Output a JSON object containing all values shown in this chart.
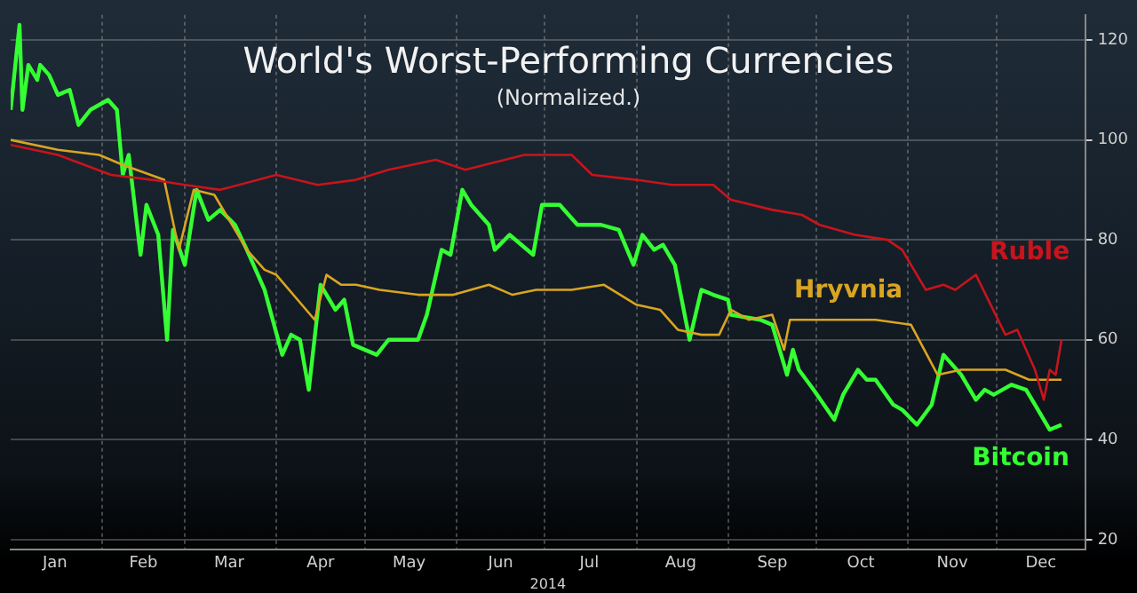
{
  "chart_data": {
    "type": "line",
    "title": "World's Worst-Performing Currencies",
    "subtitle": "(Normalized.)",
    "xlabel": "2014",
    "xlim": [
      "2014-01-01",
      "2014-12-31"
    ],
    "xticks": [
      {
        "value": "2014-01-16",
        "label": "Jan"
      },
      {
        "value": "2014-02-01",
        "label": null
      },
      {
        "value": "2014-02-15",
        "label": "Feb"
      },
      {
        "value": "2014-03-01",
        "label": null
      },
      {
        "value": "2014-03-16",
        "label": "Mar"
      },
      {
        "value": "2014-04-01",
        "label": null
      },
      {
        "value": "2014-04-16",
        "label": "Apr"
      },
      {
        "value": "2014-05-01",
        "label": null
      },
      {
        "value": "2014-05-16",
        "label": "May"
      },
      {
        "value": "2014-06-01",
        "label": null
      },
      {
        "value": "2014-06-16",
        "label": "Jun"
      },
      {
        "value": "2014-07-01",
        "label": null
      },
      {
        "value": "2014-07-16",
        "label": "Jul"
      },
      {
        "value": "2014-08-01",
        "label": null
      },
      {
        "value": "2014-08-16",
        "label": "Aug"
      },
      {
        "value": "2014-09-01",
        "label": null
      },
      {
        "value": "2014-09-16",
        "label": "Sep"
      },
      {
        "value": "2014-10-01",
        "label": null
      },
      {
        "value": "2014-10-16",
        "label": "Oct"
      },
      {
        "value": "2014-11-01",
        "label": null
      },
      {
        "value": "2014-11-16",
        "label": "Nov"
      },
      {
        "value": "2014-12-01",
        "label": null
      },
      {
        "value": "2014-12-16",
        "label": "Dec"
      }
    ],
    "ylim": [
      18,
      125
    ],
    "yticks": [
      20,
      40,
      60,
      80,
      100,
      120
    ],
    "grid": true,
    "legend": false,
    "marker": "none",
    "line_style": "solid",
    "series": [
      {
        "name": "Ruble",
        "color": "#c8141c",
        "x": [
          "2014-01-01",
          "2014-01-17",
          "2014-02-04",
          "2014-02-18",
          "2014-03-01",
          "2014-03-13",
          "2014-04-01",
          "2014-04-15",
          "2014-04-28",
          "2014-05-09",
          "2014-05-25",
          "2014-06-04",
          "2014-06-24",
          "2014-06-28",
          "2014-07-10",
          "2014-07-17",
          "2014-08-01",
          "2014-08-13",
          "2014-08-27",
          "2014-09-02",
          "2014-09-16",
          "2014-09-26",
          "2014-10-02",
          "2014-10-14",
          "2014-10-25",
          "2014-10-30",
          "2014-11-07",
          "2014-11-13",
          "2014-11-17",
          "2014-11-24",
          "2014-12-04",
          "2014-12-08",
          "2014-12-14",
          "2014-12-17",
          "2014-12-19",
          "2014-12-21",
          "2014-12-23"
        ],
        "values": [
          99,
          97,
          93,
          92,
          91,
          90,
          93,
          91,
          92,
          94,
          96,
          94,
          97,
          97,
          97,
          93,
          92,
          91,
          91,
          88,
          86,
          85,
          83,
          81,
          80,
          78,
          70,
          71,
          70,
          73,
          61,
          62,
          54,
          48,
          54,
          53,
          60
        ]
      },
      {
        "name": "Hryvnia",
        "color": "#d9a521",
        "x": [
          "2014-01-01",
          "2014-01-17",
          "2014-01-31",
          "2014-02-08",
          "2014-02-22",
          "2014-02-27",
          "2014-03-04",
          "2014-03-11",
          "2014-03-22",
          "2014-03-28",
          "2014-04-01",
          "2014-04-14",
          "2014-04-18",
          "2014-04-23",
          "2014-04-28",
          "2014-05-06",
          "2014-05-19",
          "2014-05-31",
          "2014-06-12",
          "2014-06-20",
          "2014-06-28",
          "2014-07-10",
          "2014-07-21",
          "2014-08-01",
          "2014-08-09",
          "2014-08-15",
          "2014-08-23",
          "2014-08-29",
          "2014-09-02",
          "2014-09-08",
          "2014-09-16",
          "2014-09-20",
          "2014-09-22",
          "2014-10-06",
          "2014-10-21",
          "2014-11-02",
          "2014-11-11",
          "2014-11-19",
          "2014-12-04",
          "2014-12-12",
          "2014-12-23"
        ],
        "values": [
          100,
          98,
          97,
          95,
          92,
          78,
          90,
          89,
          78,
          74,
          73,
          64,
          73,
          71,
          71,
          70,
          69,
          69,
          71,
          69,
          70,
          70,
          71,
          67,
          66,
          62,
          61,
          61,
          66,
          64,
          65,
          58,
          64,
          64,
          64,
          63,
          53,
          54,
          54,
          52,
          52
        ]
      },
      {
        "name": "Bitcoin",
        "color": "#33ff33",
        "x": [
          "2014-01-01",
          "2014-01-04",
          "2014-01-05",
          "2014-01-07",
          "2014-01-10",
          "2014-01-11",
          "2014-01-14",
          "2014-01-17",
          "2014-01-21",
          "2014-01-24",
          "2014-01-28",
          "2014-02-03",
          "2014-02-06",
          "2014-02-08",
          "2014-02-10",
          "2014-02-14",
          "2014-02-16",
          "2014-02-20",
          "2014-02-23",
          "2014-02-25",
          "2014-03-01",
          "2014-03-05",
          "2014-03-09",
          "2014-03-13",
          "2014-03-18",
          "2014-03-22",
          "2014-03-28",
          "2014-04-03",
          "2014-04-06",
          "2014-04-09",
          "2014-04-12",
          "2014-04-16",
          "2014-04-21",
          "2014-04-24",
          "2014-04-27",
          "2014-05-05",
          "2014-05-09",
          "2014-05-19",
          "2014-05-22",
          "2014-05-27",
          "2014-05-30",
          "2014-06-03",
          "2014-06-06",
          "2014-06-12",
          "2014-06-14",
          "2014-06-19",
          "2014-06-27",
          "2014-06-30",
          "2014-07-06",
          "2014-07-12",
          "2014-07-20",
          "2014-07-26",
          "2014-07-31",
          "2014-08-03",
          "2014-08-07",
          "2014-08-10",
          "2014-08-14",
          "2014-08-19",
          "2014-08-23",
          "2014-08-27",
          "2014-09-01",
          "2014-09-02",
          "2014-09-12",
          "2014-09-16",
          "2014-09-21",
          "2014-09-23",
          "2014-09-25",
          "2014-09-30",
          "2014-10-07",
          "2014-10-10",
          "2014-10-15",
          "2014-10-18",
          "2014-10-21",
          "2014-10-27",
          "2014-10-30",
          "2014-11-04",
          "2014-11-09",
          "2014-11-13",
          "2014-11-19",
          "2014-11-24",
          "2014-11-27",
          "2014-11-30",
          "2014-12-06",
          "2014-12-11",
          "2014-12-14",
          "2014-12-19",
          "2014-12-23"
        ],
        "values": [
          106,
          123,
          106,
          115,
          112,
          115,
          113,
          109,
          110,
          103,
          106,
          108,
          106,
          93,
          97,
          77,
          87,
          81,
          60,
          82,
          75,
          90,
          84,
          86,
          83,
          78,
          70,
          57,
          61,
          60,
          50,
          71,
          66,
          68,
          59,
          57,
          60,
          60,
          65,
          78,
          77,
          90,
          87,
          83,
          78,
          81,
          77,
          87,
          87,
          83,
          83,
          82,
          75,
          81,
          78,
          79,
          75,
          60,
          70,
          69,
          68,
          65,
          64,
          63,
          53,
          58,
          54,
          50,
          44,
          49,
          54,
          52,
          52,
          47,
          46,
          43,
          47,
          57,
          53,
          48,
          50,
          49,
          51,
          50,
          47,
          42,
          43
        ]
      }
    ]
  }
}
